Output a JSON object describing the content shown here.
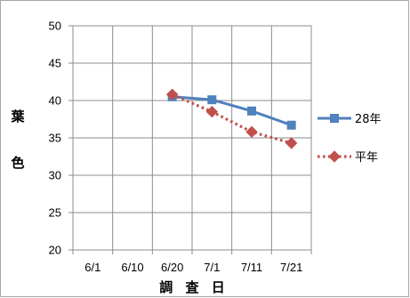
{
  "chart_data": {
    "type": "line",
    "categories": [
      "6/1",
      "6/10",
      "6/20",
      "7/1",
      "7/11",
      "7/21"
    ],
    "series": [
      {
        "name": "28年",
        "values": [
          null,
          null,
          40.5,
          40.1,
          38.6,
          36.7
        ],
        "color": "#4F81BD",
        "marker": "square",
        "line": "solid"
      },
      {
        "name": "平年",
        "values": [
          null,
          null,
          40.8,
          38.5,
          35.8,
          34.3
        ],
        "color": "#C0504D",
        "marker": "diamond",
        "line": "dotted"
      }
    ],
    "xlabel": "調 査 日",
    "ylabel": "葉色",
    "ylim": [
      20,
      50
    ],
    "yticks": [
      20,
      25,
      30,
      35,
      40,
      45,
      50
    ],
    "grid": true,
    "legend": "right"
  }
}
